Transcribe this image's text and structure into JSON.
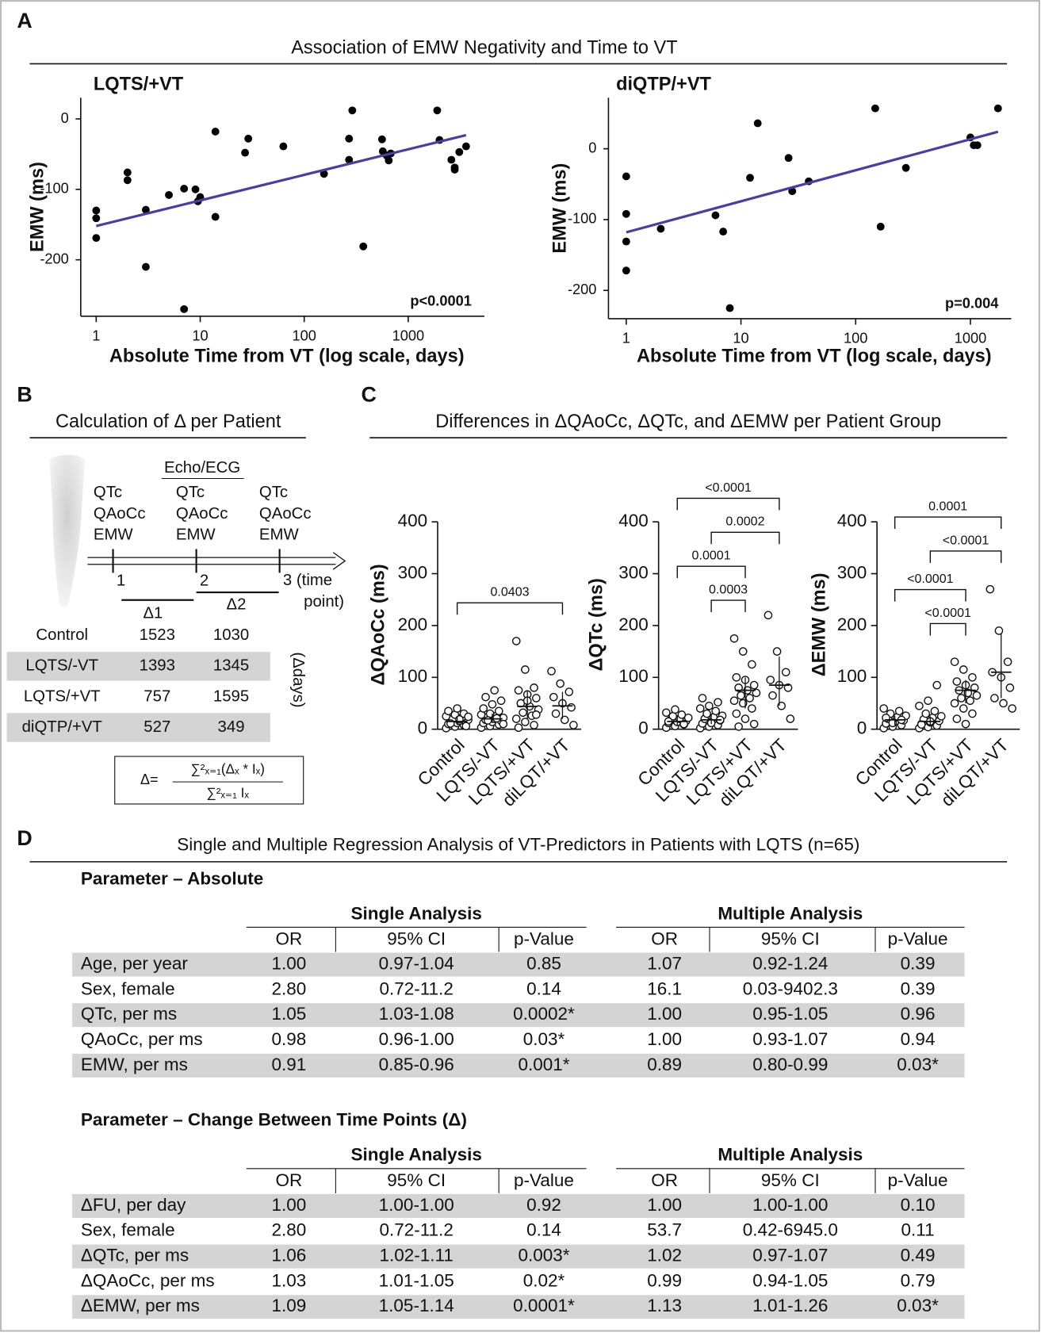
{
  "panel_labels": [
    "A",
    "B",
    "C",
    "D"
  ],
  "panel_a": {
    "title": "Association of EMW Negativity and Time to VT"
  },
  "panel_c": {
    "title": "Differences in ΔQAoCc, ΔQTc, and ΔEMW per Patient Group"
  },
  "chart_data": [
    {
      "type": "scatter",
      "title": "LQTS/+VT",
      "xlabel": "Absolute Time from VT (log scale, days)",
      "ylabel": "EMW (ms)",
      "x": [
        1,
        1,
        1,
        2,
        2,
        3,
        3,
        5,
        7,
        7,
        9,
        9.5,
        10,
        14,
        14,
        27,
        29,
        63,
        155,
        290,
        270,
        270,
        370,
        560,
        570,
        620,
        650,
        680,
        1900,
        2000,
        2600,
        2800,
        2800,
        3100,
        3600
      ],
      "y": [
        -130,
        -141,
        -169,
        -76,
        -87,
        -129,
        -210,
        -108,
        -99,
        -270,
        -100,
        -117,
        -111,
        -18,
        -139,
        -48,
        -28,
        -39,
        -78,
        12,
        -58,
        -28,
        -181,
        -29,
        -46,
        -52,
        -59,
        -49,
        12,
        -30,
        -58,
        -69,
        -72,
        -47,
        -39
      ],
      "color": "#000000",
      "fit": {
        "x": [
          1,
          3600
        ],
        "y": [
          -152,
          -23
        ]
      },
      "fit_color": "#4b3f9e",
      "xscale": "log",
      "xlim": [
        0.71,
        5400
      ],
      "ylim": [
        -280,
        30
      ],
      "xticks": [
        1,
        10,
        100,
        1000
      ],
      "yticks": [
        -200,
        -100,
        0
      ],
      "annotation": "p<0.0001"
    },
    {
      "type": "scatter",
      "title": "diQTP/+VT",
      "xlabel": "Absolute Time from VT (log scale, days)",
      "ylabel": "EMW (ms)",
      "x": [
        1,
        1,
        1,
        1,
        2,
        6,
        7,
        8,
        12,
        14,
        26,
        28,
        39,
        148,
        165,
        274,
        1000,
        1070,
        1150,
        1740
      ],
      "y": [
        -39,
        -92,
        -131,
        -172,
        -113,
        -94,
        -117,
        -225,
        -41,
        36,
        -13,
        -60,
        -46,
        57,
        -110,
        -27,
        16,
        5,
        5,
        57
      ],
      "color": "#000000",
      "fit": {
        "x": [
          1,
          1740
        ],
        "y": [
          -118,
          24
        ]
      },
      "fit_color": "#4b3f9e",
      "xscale": "log",
      "xlim": [
        0.7,
        2270
      ],
      "ylim": [
        -240,
        72
      ],
      "xticks": [
        1,
        10,
        100,
        1000
      ],
      "yticks": [
        -200,
        -100,
        0
      ],
      "annotation": "p=0.004"
    },
    {
      "type": "dotplot",
      "ylabel": "ΔQAoCc (ms)",
      "categories": [
        "Control",
        "LQTS/-VT",
        "LQTS/+VT",
        "diLQT/+VT"
      ],
      "values": [
        [
          2,
          5,
          8,
          10,
          12,
          14,
          15,
          16,
          18,
          20,
          22,
          25,
          28,
          30,
          35,
          40,
          6,
          11,
          19,
          24
        ],
        [
          3,
          6,
          9,
          12,
          14,
          16,
          18,
          20,
          22,
          24,
          26,
          28,
          30,
          35,
          40,
          48,
          55,
          62,
          75,
          10,
          17,
          21
        ],
        [
          170,
          115,
          80,
          75,
          67,
          60,
          50,
          44,
          38,
          32,
          26,
          20,
          14,
          8,
          3,
          55,
          28
        ],
        [
          112,
          88,
          72,
          62,
          50,
          42,
          30,
          18,
          8
        ]
      ],
      "medians": [
        15,
        20,
        44,
        45
      ],
      "iqr": [
        [
          8,
          25
        ],
        [
          12,
          30
        ],
        [
          20,
          75
        ],
        [
          20,
          72
        ]
      ],
      "ylim": [
        0,
        400
      ],
      "yticks": [
        0,
        100,
        200,
        300,
        400
      ],
      "comparisons": [
        {
          "groups": [
            0,
            3
          ],
          "label": "0.0403"
        }
      ]
    },
    {
      "type": "dotplot",
      "ylabel": "ΔQTc (ms)",
      "categories": [
        "Control",
        "LQTS/-VT",
        "LQTS/+VT",
        "diLQT/+VT"
      ],
      "values": [
        [
          3,
          6,
          9,
          12,
          14,
          16,
          18,
          20,
          22,
          25,
          28,
          32,
          38,
          10,
          15
        ],
        [
          2,
          5,
          8,
          11,
          14,
          17,
          20,
          23,
          26,
          30,
          35,
          40,
          45,
          52,
          60,
          12,
          18
        ],
        [
          175,
          150,
          125,
          100,
          95,
          85,
          80,
          75,
          70,
          65,
          60,
          55,
          50,
          40,
          30,
          20,
          10,
          5
        ],
        [
          220,
          150,
          110,
          95,
          85,
          80,
          65,
          45,
          20
        ]
      ],
      "medians": [
        15,
        18,
        75,
        85
      ],
      "iqr": [
        [
          8,
          25
        ],
        [
          10,
          30
        ],
        [
          40,
          100
        ],
        [
          45,
          140
        ]
      ],
      "ylim": [
        0,
        400
      ],
      "yticks": [
        0,
        100,
        200,
        300,
        400
      ],
      "comparisons": [
        {
          "groups": [
            1,
            2
          ],
          "label": "0.0003"
        },
        {
          "groups": [
            0,
            2
          ],
          "label": "0.0001"
        },
        {
          "groups": [
            1,
            3
          ],
          "label": "0.0002"
        },
        {
          "groups": [
            0,
            3
          ],
          "label": "<0.0001"
        }
      ]
    },
    {
      "type": "dotplot",
      "ylabel": "ΔEMW (ms)",
      "categories": [
        "Control",
        "LQTS/-VT",
        "LQTS/+VT",
        "diLQT/+VT"
      ],
      "values": [
        [
          2,
          5,
          8,
          11,
          14,
          17,
          20,
          23,
          26,
          30,
          35,
          40,
          12,
          18,
          22
        ],
        [
          2,
          4,
          7,
          10,
          13,
          16,
          19,
          22,
          25,
          30,
          35,
          45,
          55,
          85,
          9,
          15
        ],
        [
          130,
          115,
          100,
          92,
          85,
          80,
          75,
          70,
          65,
          60,
          55,
          50,
          40,
          30,
          20,
          10
        ],
        [
          270,
          190,
          130,
          110,
          100,
          80,
          60,
          50,
          40
        ]
      ],
      "medians": [
        18,
        15,
        75,
        110
      ],
      "iqr": [
        [
          8,
          26
        ],
        [
          7,
          25
        ],
        [
          50,
          95
        ],
        [
          60,
          185
        ]
      ],
      "ylim": [
        0,
        400
      ],
      "yticks": [
        0,
        100,
        200,
        300,
        400
      ],
      "comparisons": [
        {
          "groups": [
            1,
            2
          ],
          "label": "<0.0001"
        },
        {
          "groups": [
            0,
            2
          ],
          "label": "<0.0001"
        },
        {
          "groups": [
            1,
            3
          ],
          "label": "<0.0001"
        },
        {
          "groups": [
            0,
            3
          ],
          "label": "0.0001"
        }
      ]
    }
  ],
  "panel_b": {
    "title": "Calculation of Δ per Patient",
    "exam_label": "Echo/ECG",
    "timepoints": [
      {
        "measures": [
          "QTc",
          "QAoCc",
          "EMW"
        ],
        "label": "1"
      },
      {
        "measures": [
          "QTc",
          "QAoCc",
          "EMW"
        ],
        "label": "2"
      },
      {
        "measures": [
          "QTc",
          "QAoCc",
          "EMW"
        ],
        "label": "3 (time point)"
      }
    ],
    "intervals": [
      "Δ1",
      "Δ2"
    ],
    "unit_label": "(Δdays)",
    "rows": [
      [
        "Control",
        1523,
        1030
      ],
      [
        "LQTS/-VT",
        1393,
        1345
      ],
      [
        "LQTS/+VT",
        757,
        1595
      ],
      [
        "diQTP/+VT",
        527,
        349
      ]
    ],
    "formula": {
      "lhs": "Δ=",
      "numerator": "∑²ₓ₌₁(Δₓ * Iₓ)",
      "denominator": "∑²ₓ₌₁ Iₓ"
    }
  },
  "panel_d": {
    "title": "Single and Multiple Regression Analysis of VT-Predictors in Patients with LQTS (n=65)",
    "sections": [
      {
        "heading": "Parameter – Absolute",
        "group_headers": [
          "Single Analysis",
          "Multiple Analysis"
        ],
        "columns": [
          "OR",
          "95% CI",
          "p-Value",
          "OR",
          "95% CI",
          "p-Value"
        ],
        "rows": [
          [
            "Age, per year",
            "1.00",
            "0.97-1.04",
            "0.85",
            "1.07",
            "0.92-1.24",
            "0.39"
          ],
          [
            "Sex, female",
            "2.80",
            "0.72-11.2",
            "0.14",
            "16.1",
            "0.03-9402.3",
            "0.39"
          ],
          [
            "QTc, per ms",
            "1.05",
            "1.03-1.08",
            "0.0002*",
            "1.00",
            "0.95-1.05",
            "0.96"
          ],
          [
            "QAoCc, per ms",
            "0.98",
            "0.96-1.00",
            "0.03*",
            "1.00",
            "0.93-1.07",
            "0.94"
          ],
          [
            "EMW, per ms",
            "0.91",
            "0.85-0.96",
            "0.001*",
            "0.89",
            "0.80-0.99",
            "0.03*"
          ]
        ]
      },
      {
        "heading": "Parameter – Change Between Time Points (Δ)",
        "group_headers": [
          "Single Analysis",
          "Multiple Analysis"
        ],
        "columns": [
          "OR",
          "95% CI",
          "p-Value",
          "OR",
          "95% CI",
          "p-Value"
        ],
        "rows": [
          [
            "ΔFU, per day",
            "1.00",
            "1.00-1.00",
            "0.92",
            "1.00",
            "1.00-1.00",
            "0.10"
          ],
          [
            "Sex, female",
            "2.80",
            "0.72-11.2",
            "0.14",
            "53.7",
            "0.42-6945.0",
            "0.11"
          ],
          [
            "ΔQTc, per ms",
            "1.06",
            "1.02-1.11",
            "0.003*",
            "1.02",
            "0.97-1.07",
            "0.49"
          ],
          [
            "ΔQAoCc, per ms",
            "1.03",
            "1.01-1.05",
            "0.02*",
            "0.99",
            "0.94-1.05",
            "0.79"
          ],
          [
            "ΔEMW, per ms",
            "1.09",
            "1.05-1.14",
            "0.0001*",
            "1.13",
            "1.01-1.26",
            "0.03*"
          ]
        ]
      }
    ]
  }
}
